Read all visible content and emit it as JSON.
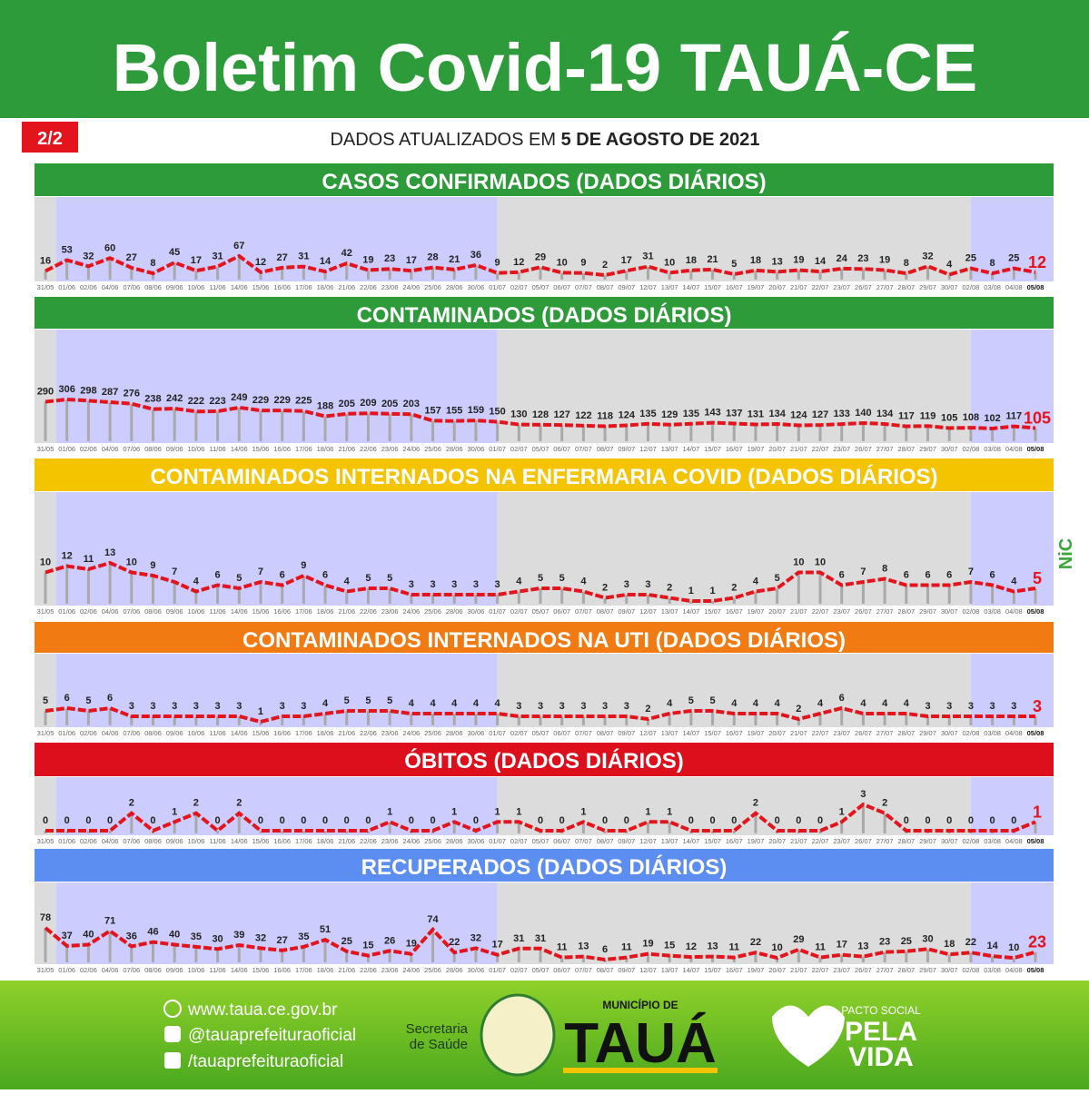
{
  "header": {
    "title": "Boletim Covid-19 TAUÁ-CE",
    "badge": "2/2",
    "update_prefix": "DADOS ATUALIZADOS EM",
    "update_date": "5 DE AGOSTO DE 2021"
  },
  "side_logo": "NiC",
  "chart_data": [
    {
      "type": "line",
      "title": "CASOS CONFIRMADOS  (DADOS DIÁRIOS)",
      "banner_color": "#2e9b3a",
      "color": "#e3141b",
      "x": [
        "31/05",
        "01/06",
        "02/06",
        "04/06",
        "07/06",
        "08/06",
        "09/06",
        "10/06",
        "11/06",
        "14/06",
        "15/06",
        "16/06",
        "17/06",
        "18/06",
        "21/06",
        "22/06",
        "23/06",
        "24/06",
        "25/06",
        "28/06",
        "30/06",
        "01/07",
        "02/07",
        "05/07",
        "06/07",
        "07/07",
        "08/07",
        "09/07",
        "12/07",
        "13/07",
        "14/07",
        "15/07",
        "16/07",
        "19/07",
        "20/07",
        "21/07",
        "22/07",
        "23/07",
        "26/07",
        "27/07",
        "28/07",
        "29/07",
        "30/07",
        "02/08",
        "03/08",
        "04/08",
        "05/08"
      ],
      "values": [
        16,
        53,
        32,
        60,
        27,
        8,
        45,
        17,
        31,
        67,
        12,
        27,
        31,
        14,
        42,
        19,
        23,
        17,
        28,
        21,
        36,
        9,
        12,
        29,
        10,
        9,
        2,
        17,
        31,
        10,
        18,
        21,
        5,
        18,
        13,
        19,
        14,
        24,
        23,
        19,
        8,
        32,
        4,
        25,
        8,
        25,
        12
      ]
    },
    {
      "type": "line",
      "title": "CONTAMINADOS  (DADOS DIÁRIOS)",
      "banner_color": "#2e9b3a",
      "color": "#e3141b",
      "x": [
        "31/05",
        "01/06",
        "02/06",
        "04/06",
        "07/06",
        "08/06",
        "09/06",
        "10/06",
        "11/06",
        "14/06",
        "15/06",
        "16/06",
        "17/06",
        "18/06",
        "21/06",
        "22/06",
        "23/06",
        "24/06",
        "25/06",
        "28/06",
        "30/06",
        "01/07",
        "02/07",
        "05/07",
        "06/07",
        "07/07",
        "08/07",
        "09/07",
        "12/07",
        "13/07",
        "14/07",
        "15/07",
        "16/07",
        "19/07",
        "20/07",
        "21/07",
        "22/07",
        "23/07",
        "26/07",
        "27/07",
        "28/07",
        "29/07",
        "30/07",
        "02/08",
        "03/08",
        "04/08",
        "05/08"
      ],
      "values": [
        290,
        306,
        298,
        287,
        276,
        238,
        242,
        222,
        223,
        249,
        229,
        229,
        225,
        188,
        205,
        209,
        205,
        203,
        157,
        155,
        159,
        150,
        130,
        128,
        127,
        122,
        118,
        124,
        135,
        129,
        135,
        143,
        137,
        131,
        134,
        124,
        127,
        133,
        140,
        134,
        117,
        119,
        105,
        108,
        102,
        117,
        105
      ]
    },
    {
      "type": "line",
      "title": "CONTAMINADOS INTERNADOS NA ENFERMARIA COVID  (DADOS DIÁRIOS)",
      "banner_color": "#f5c400",
      "color": "#e3141b",
      "x": [
        "31/05",
        "01/06",
        "02/06",
        "04/06",
        "07/06",
        "08/06",
        "09/06",
        "10/06",
        "11/06",
        "14/06",
        "15/06",
        "16/06",
        "17/06",
        "18/06",
        "21/06",
        "22/06",
        "23/06",
        "24/06",
        "25/06",
        "28/06",
        "30/06",
        "01/07",
        "02/07",
        "05/07",
        "06/07",
        "07/07",
        "08/07",
        "09/07",
        "12/07",
        "13/07",
        "14/07",
        "15/07",
        "16/07",
        "19/07",
        "20/07",
        "21/07",
        "22/07",
        "23/07",
        "26/07",
        "27/07",
        "28/07",
        "29/07",
        "30/07",
        "02/08",
        "03/08",
        "04/08",
        "05/08"
      ],
      "values": [
        10,
        12,
        11,
        13,
        10,
        9,
        7,
        4,
        6,
        5,
        7,
        6,
        9,
        6,
        4,
        5,
        5,
        3,
        3,
        3,
        3,
        3,
        4,
        5,
        5,
        4,
        2,
        3,
        3,
        2,
        1,
        1,
        2,
        4,
        5,
        10,
        10,
        6,
        7,
        8,
        6,
        6,
        6,
        7,
        6,
        4,
        5
      ]
    },
    {
      "type": "line",
      "title": "CONTAMINADOS INTERNADOS NA UTI  (DADOS DIÁRIOS)",
      "banner_color": "#f27a12",
      "color": "#e3141b",
      "x": [
        "31/05",
        "01/06",
        "02/06",
        "04/06",
        "07/06",
        "08/06",
        "09/06",
        "10/06",
        "11/06",
        "14/06",
        "15/06",
        "16/06",
        "17/06",
        "18/06",
        "21/06",
        "22/06",
        "23/06",
        "24/06",
        "25/06",
        "28/06",
        "30/06",
        "01/07",
        "02/07",
        "05/07",
        "06/07",
        "07/07",
        "08/07",
        "09/07",
        "12/07",
        "13/07",
        "14/07",
        "15/07",
        "16/07",
        "19/07",
        "20/07",
        "21/07",
        "22/07",
        "23/07",
        "26/07",
        "27/07",
        "28/07",
        "29/07",
        "30/07",
        "02/08",
        "03/08",
        "04/08",
        "05/08"
      ],
      "values": [
        5,
        6,
        5,
        6,
        3,
        3,
        3,
        3,
        3,
        3,
        1,
        3,
        3,
        4,
        5,
        5,
        5,
        4,
        4,
        4,
        4,
        4,
        3,
        3,
        3,
        3,
        3,
        3,
        2,
        4,
        5,
        5,
        4,
        4,
        4,
        2,
        4,
        6,
        4,
        4,
        4,
        3,
        3,
        3,
        3,
        3,
        3
      ]
    },
    {
      "type": "line",
      "title": "ÓBITOS  (DADOS DIÁRIOS)",
      "banner_color": "#de0f1c",
      "color": "#e3141b",
      "x": [
        "31/05",
        "01/06",
        "02/06",
        "04/06",
        "07/06",
        "08/06",
        "09/06",
        "10/06",
        "11/06",
        "14/06",
        "15/06",
        "16/06",
        "17/06",
        "18/06",
        "21/06",
        "22/06",
        "23/06",
        "24/06",
        "25/06",
        "28/06",
        "30/06",
        "01/07",
        "02/07",
        "05/07",
        "06/07",
        "07/07",
        "08/07",
        "09/07",
        "12/07",
        "13/07",
        "14/07",
        "15/07",
        "16/07",
        "19/07",
        "20/07",
        "21/07",
        "22/07",
        "23/07",
        "26/07",
        "27/07",
        "28/07",
        "29/07",
        "30/07",
        "02/08",
        "03/08",
        "04/08",
        "05/08"
      ],
      "values": [
        0,
        0,
        0,
        0,
        2,
        0,
        1,
        2,
        0,
        2,
        0,
        0,
        0,
        0,
        0,
        0,
        1,
        0,
        0,
        1,
        0,
        1,
        1,
        0,
        0,
        1,
        0,
        0,
        1,
        1,
        0,
        0,
        0,
        2,
        0,
        0,
        0,
        1,
        3,
        2,
        0,
        0,
        0,
        0,
        0,
        0,
        1
      ]
    },
    {
      "type": "line",
      "title": "RECUPERADOS (DADOS DIÁRIOS)",
      "banner_color": "#5b8ef0",
      "color": "#e3141b",
      "x": [
        "31/05",
        "01/06",
        "02/06",
        "04/06",
        "07/06",
        "08/06",
        "09/06",
        "10/06",
        "11/06",
        "14/06",
        "15/06",
        "16/06",
        "17/06",
        "18/06",
        "21/06",
        "22/06",
        "23/06",
        "24/06",
        "25/06",
        "28/06",
        "30/06",
        "01/07",
        "02/07",
        "05/07",
        "06/07",
        "07/07",
        "08/07",
        "09/07",
        "12/07",
        "13/07",
        "14/07",
        "15/07",
        "16/07",
        "19/07",
        "20/07",
        "21/07",
        "22/07",
        "23/07",
        "26/07",
        "27/07",
        "28/07",
        "29/07",
        "30/07",
        "02/08",
        "03/08",
        "04/08",
        "05/08"
      ],
      "values": [
        78,
        37,
        40,
        71,
        36,
        46,
        40,
        35,
        30,
        39,
        32,
        27,
        35,
        51,
        25,
        15,
        26,
        19,
        74,
        22,
        32,
        17,
        31,
        31,
        11,
        13,
        6,
        11,
        19,
        15,
        12,
        13,
        11,
        22,
        10,
        29,
        11,
        17,
        13,
        23,
        25,
        30,
        18,
        22,
        14,
        10,
        23
      ]
    }
  ],
  "footer": {
    "website": "www.taua.ce.gov.br",
    "instagram": "@tauaprefeituraoficial",
    "facebook": "/tauaprefeituraoficial",
    "secretaria_1": "Secretaria",
    "secretaria_2": "de Saúde",
    "municipio": "MUNICÍPIO DE",
    "city": "TAUÁ",
    "pacto": "PACTO SOCIAL",
    "pela": "PELA",
    "vida": "VIDA"
  }
}
